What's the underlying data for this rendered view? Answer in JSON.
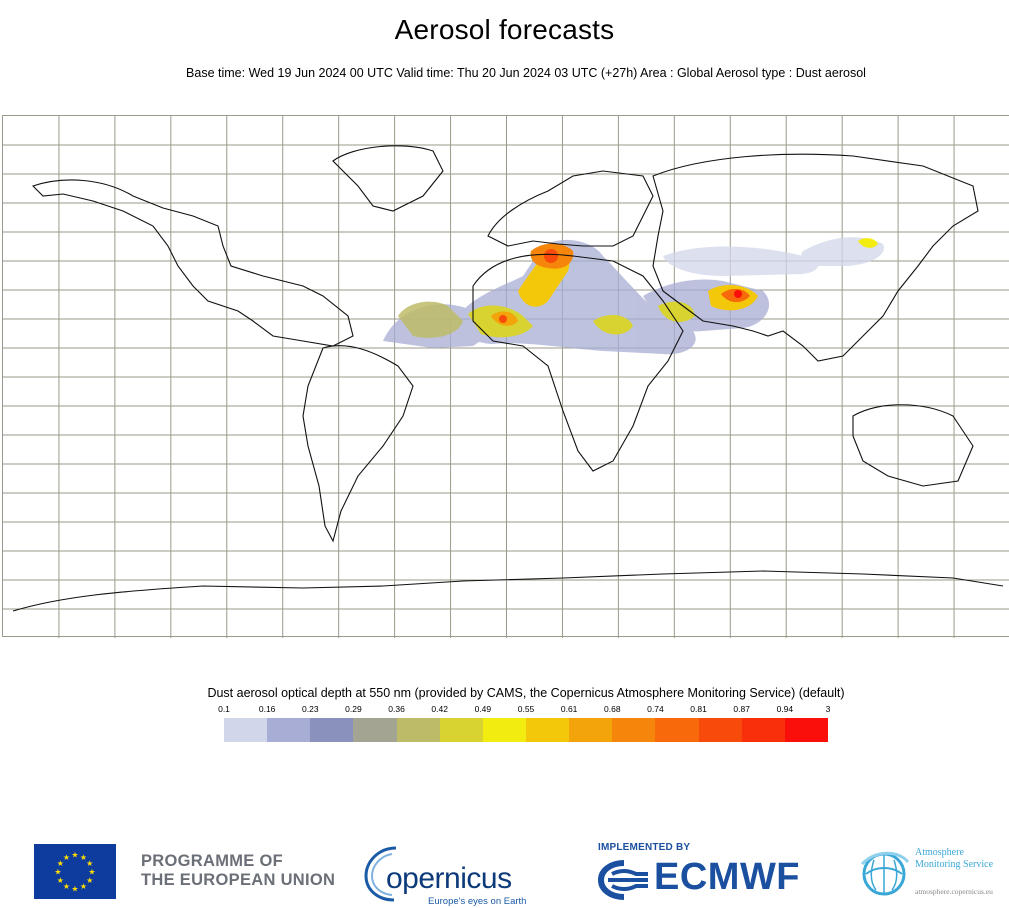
{
  "header": {
    "title": "Aerosol forecasts",
    "subtitle": "Base time: Wed 19 Jun 2024 00 UTC Valid time: Thu 20 Jun 2024 03 UTC (+27h) Area : Global Aerosol type : Dust aerosol"
  },
  "map": {
    "area": "Global",
    "projection": "equirectangular",
    "coastlines": true,
    "gridlines": true,
    "gridline_color": "#9a9a8a",
    "dust_regions": [
      "Sahara",
      "West Africa coast",
      "Tropical Atlantic outflow",
      "Mediterranean",
      "Arabian Peninsula",
      "Pakistan / NW India",
      "Central Asia",
      "Gobi"
    ]
  },
  "legend": {
    "title": "Dust aerosol optical depth at 550 nm (provided by CAMS, the Copernicus Atmosphere Monitoring Service) (default)",
    "ticks": [
      "0.1",
      "0.16",
      "0.23",
      "0.29",
      "0.36",
      "0.42",
      "0.49",
      "0.55",
      "0.61",
      "0.68",
      "0.74",
      "0.81",
      "0.87",
      "0.94",
      "3"
    ],
    "colors": [
      "#d2d6ea",
      "#a7add4",
      "#8a91bd",
      "#a3a592",
      "#bdbb67",
      "#d8d331",
      "#f3ec10",
      "#f3c70a",
      "#f4a40b",
      "#f5860b",
      "#f7690b",
      "#f84b0b",
      "#f92e0b",
      "#fa0f0b"
    ]
  },
  "footer": {
    "eu_line1": "PROGRAMME OF",
    "eu_line2": "THE EUROPEAN UNION",
    "copernicus_name": "opernicus",
    "copernicus_tagline": "Europe's eyes on Earth",
    "implemented_by": "IMPLEMENTED BY",
    "ecmwf": "ECMWF",
    "ams_line1": "Atmosphere",
    "ams_line2": "Monitoring Service",
    "ams_url": "atmosphere.copernicus.eu"
  }
}
